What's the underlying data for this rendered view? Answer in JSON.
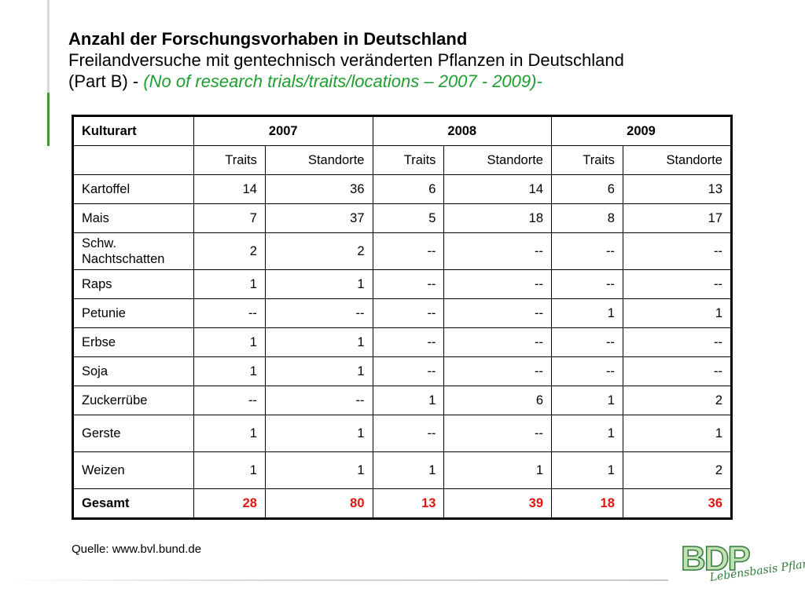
{
  "title": {
    "line1": "Anzahl der Forschungsvorhaben in Deutschland",
    "line2": "Freilandversuche mit gentechnisch veränderten Pflanzen in Deutschland",
    "line3_prefix": "(Part B) - ",
    "line3_accent": "(No of research trials/traits/locations – 2007 - 2009)-"
  },
  "table": {
    "corner": "Kulturart",
    "years": [
      "2007",
      "2008",
      "2009"
    ],
    "subheaders": [
      "Traits",
      "Standorte",
      "Traits",
      "Standorte",
      "Traits",
      "Standorte"
    ],
    "rows": [
      {
        "label": "Kartoffel",
        "values": [
          "14",
          "36",
          "6",
          "14",
          "6",
          "13"
        ]
      },
      {
        "label": "Mais",
        "values": [
          "7",
          "37",
          "5",
          "18",
          "8",
          "17"
        ]
      },
      {
        "label_line1": "Schw.",
        "label_line2": "Nachtschatten",
        "values": [
          "2",
          "2",
          "--",
          "--",
          "--",
          "--"
        ]
      },
      {
        "label": "Raps",
        "values": [
          "1",
          "1",
          "--",
          "--",
          "--",
          "--"
        ]
      },
      {
        "label": "Petunie",
        "values": [
          "--",
          "--",
          "--",
          "--",
          "1",
          "1"
        ]
      },
      {
        "label": "Erbse",
        "values": [
          "1",
          "1",
          "--",
          "--",
          "--",
          "--"
        ]
      },
      {
        "label": "Soja",
        "values": [
          "1",
          "1",
          "--",
          "--",
          "--",
          "--"
        ]
      },
      {
        "label": "Zuckerrübe",
        "values": [
          "--",
          "--",
          "1",
          "6",
          "1",
          "2"
        ]
      },
      {
        "label": "Gerste",
        "values": [
          "1",
          "1",
          "--",
          "--",
          "1",
          "1"
        ]
      },
      {
        "label": "Weizen",
        "values": [
          "1",
          "1",
          "1",
          "1",
          "1",
          "2"
        ]
      }
    ],
    "total": {
      "label": "Gesamt",
      "values": [
        "28",
        "80",
        "13",
        "39",
        "18",
        "36"
      ]
    }
  },
  "source": "Quelle: www.bvl.bund.de",
  "logo": {
    "letters": "BDP",
    "tagline": "Lebensbasis Pflanze"
  },
  "colors": {
    "accent_green": "#1e9e2e",
    "total_red": "#e0150f",
    "logo_green": "#2f7a3a"
  }
}
